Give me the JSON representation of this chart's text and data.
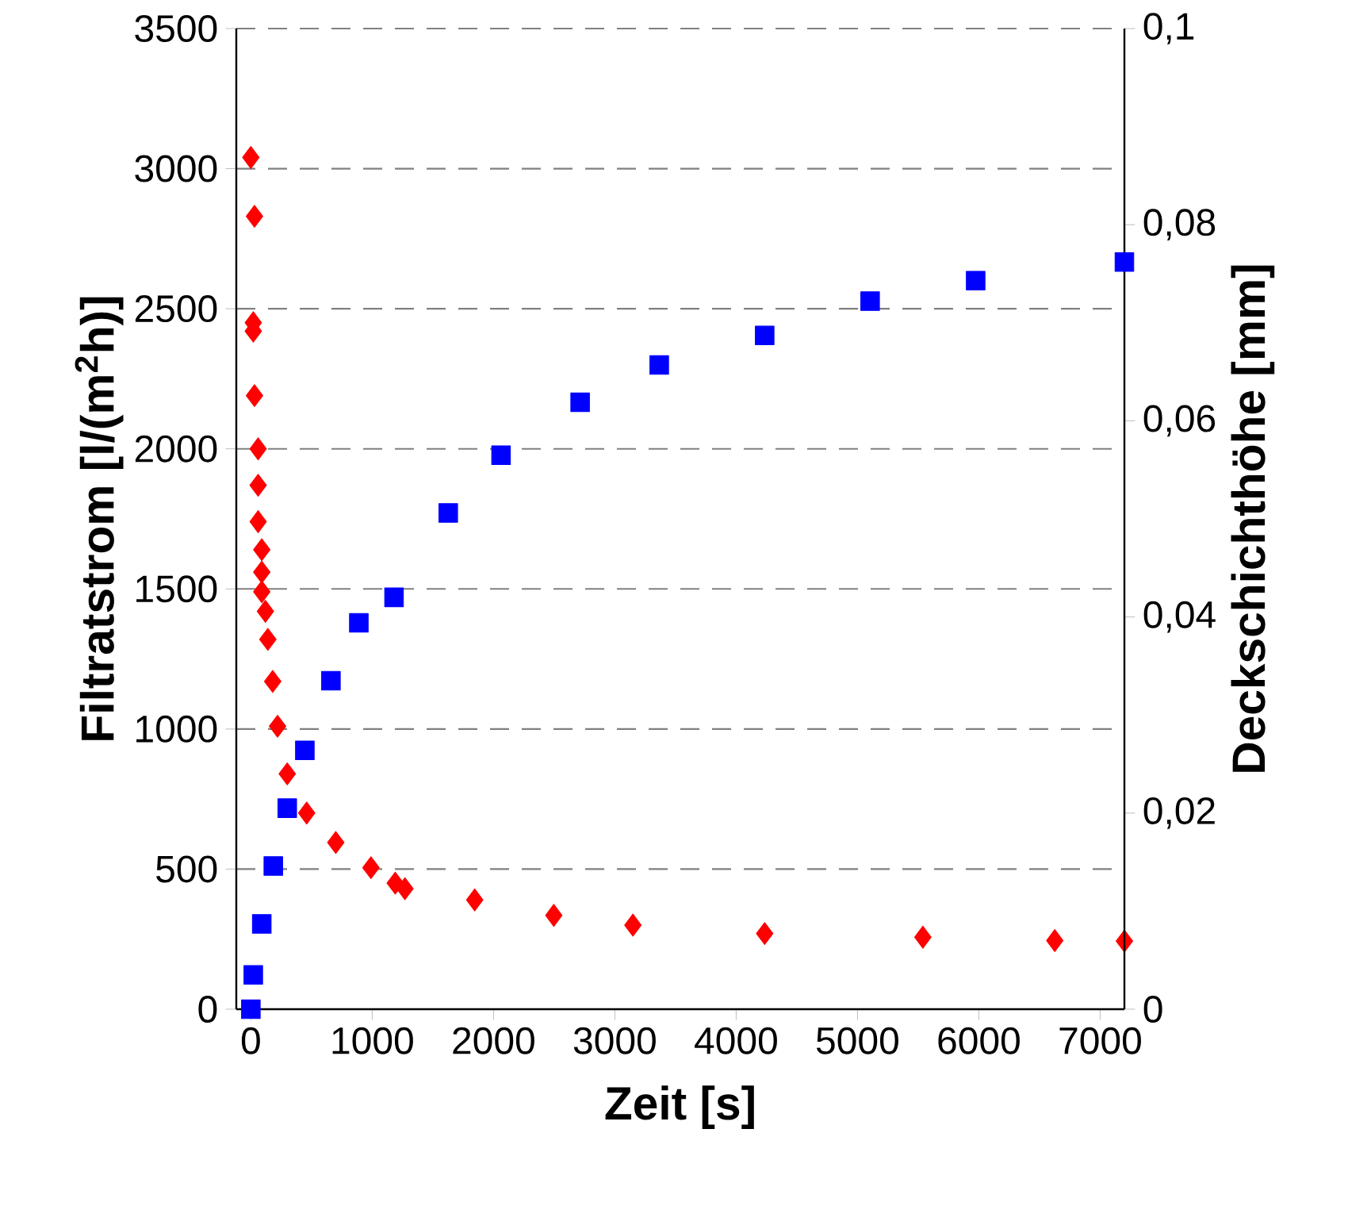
{
  "chart_data": {
    "type": "scatter",
    "xlabel": "Zeit [s]",
    "ylabel": "Filtratstrom [l/(m$^{2}$h)]",
    "y2label": "Deckschichthöhe [mm]",
    "xlim": [
      -120,
      7200
    ],
    "xticks": [
      0,
      1000,
      2000,
      3000,
      4000,
      5000,
      6000,
      7000
    ],
    "ylim": [
      0,
      3500
    ],
    "yticks": [
      0,
      500,
      1000,
      1500,
      2000,
      2500,
      3000,
      3500
    ],
    "y2lim": [
      0,
      0.1
    ],
    "y2ticks": [
      {
        "value": 0,
        "label": "0"
      },
      {
        "value": 0.02,
        "label": "0,02"
      },
      {
        "value": 0.04,
        "label": "0,04"
      },
      {
        "value": 0.06,
        "label": "0,06"
      },
      {
        "value": 0.08,
        "label": "0,08"
      },
      {
        "value": 0.1,
        "label": "0,1"
      }
    ],
    "grid": "y",
    "series": [
      {
        "color": "#ff0000",
        "marker": "diamond",
        "x": [
          0,
          30,
          20,
          20,
          30,
          60,
          60,
          60,
          90,
          90,
          90,
          120,
          140,
          180,
          220,
          300,
          460,
          700,
          990,
          1190,
          1270,
          1845,
          2497,
          3149,
          4235,
          5539,
          6626,
          7200
        ],
        "values": [
          3040,
          2830,
          2450,
          2420,
          2190,
          2000,
          1870,
          1740,
          1640,
          1560,
          1490,
          1420,
          1320,
          1170,
          1010,
          840,
          700,
          595,
          505,
          450,
          430,
          390,
          335,
          300,
          270,
          257,
          245,
          243
        ]
      },
      {
        "color": "#0000ff",
        "marker": "square",
        "axis": "y2",
        "x": [
          0,
          20,
          90,
          185,
          300,
          445,
          660,
          890,
          1180,
          1627,
          2062,
          2714,
          3366,
          4235,
          5104,
          5974,
          7200
        ],
        "values": [
          0,
          0.0035,
          0.0087,
          0.0146,
          0.0205,
          0.0264,
          0.0335,
          0.0394,
          0.042,
          0.0506,
          0.0565,
          0.0619,
          0.0657,
          0.0687,
          0.0722,
          0.0743,
          0.0762
        ]
      }
    ]
  }
}
